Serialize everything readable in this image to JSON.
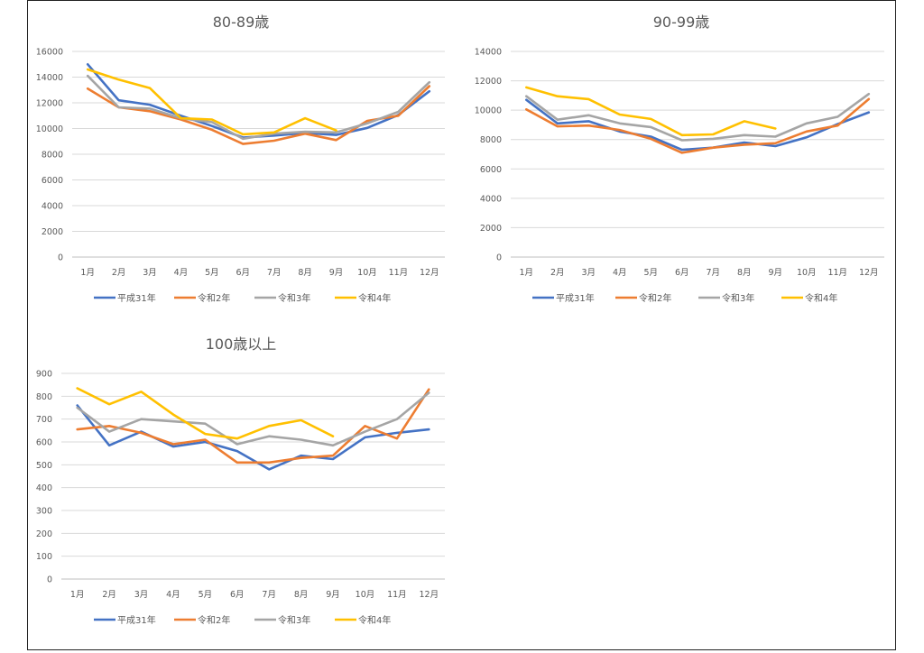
{
  "chart_data": [
    {
      "type": "line",
      "title": "80-89歳",
      "categories": [
        "1月",
        "2月",
        "3月",
        "4月",
        "5月",
        "6月",
        "7月",
        "8月",
        "9月",
        "10月",
        "11月",
        "12月"
      ],
      "ylim": [
        0,
        16000
      ],
      "yticks": [
        0,
        2000,
        4000,
        6000,
        8000,
        10000,
        12000,
        14000,
        16000
      ],
      "grid": true,
      "legend_position": "bottom",
      "series": [
        {
          "name": "平成31年",
          "color": "#4472C4",
          "values": [
            15000,
            12200,
            11850,
            11000,
            10200,
            9300,
            9450,
            9650,
            9500,
            10050,
            11050,
            12900
          ]
        },
        {
          "name": "令和2年",
          "color": "#ED7D31",
          "values": [
            13100,
            11650,
            11350,
            10700,
            9900,
            8800,
            9050,
            9600,
            9100,
            10600,
            11000,
            13300
          ]
        },
        {
          "name": "令和3年",
          "color": "#A5A5A5",
          "values": [
            14100,
            11650,
            11550,
            10800,
            10500,
            9200,
            9600,
            9750,
            9700,
            10400,
            11300,
            13600
          ]
        },
        {
          "name": "令和4年",
          "color": "#FFC000",
          "values": [
            14600,
            13800,
            13150,
            10800,
            10700,
            9550,
            9700,
            10800,
            9850,
            null,
            null,
            null
          ]
        }
      ]
    },
    {
      "type": "line",
      "title": "90-99歳",
      "categories": [
        "1月",
        "2月",
        "3月",
        "4月",
        "5月",
        "6月",
        "7月",
        "8月",
        "9月",
        "10月",
        "11月",
        "12月"
      ],
      "ylim": [
        0,
        14000
      ],
      "yticks": [
        0,
        2000,
        4000,
        6000,
        8000,
        10000,
        12000,
        14000
      ],
      "grid": true,
      "legend_position": "bottom",
      "series": [
        {
          "name": "平成31年",
          "color": "#4472C4",
          "values": [
            10700,
            9100,
            9250,
            8550,
            8200,
            7300,
            7450,
            7800,
            7550,
            8150,
            9050,
            9850
          ]
        },
        {
          "name": "令和2年",
          "color": "#ED7D31",
          "values": [
            10050,
            8900,
            8950,
            8650,
            8050,
            7100,
            7450,
            7650,
            7750,
            8550,
            8950,
            10750
          ]
        },
        {
          "name": "令和3年",
          "color": "#A5A5A5",
          "values": [
            10950,
            9350,
            9650,
            9100,
            8850,
            7950,
            8050,
            8300,
            8200,
            9100,
            9550,
            11100
          ]
        },
        {
          "name": "令和4年",
          "color": "#FFC000",
          "values": [
            11550,
            10950,
            10750,
            9700,
            9400,
            8300,
            8350,
            9250,
            8750,
            null,
            null,
            null
          ]
        }
      ]
    },
    {
      "type": "line",
      "title": "100歳以上",
      "categories": [
        "1月",
        "2月",
        "3月",
        "4月",
        "5月",
        "6月",
        "7月",
        "8月",
        "9月",
        "10月",
        "11月",
        "12月"
      ],
      "ylim": [
        0,
        900
      ],
      "yticks": [
        0,
        100,
        200,
        300,
        400,
        500,
        600,
        700,
        800,
        900
      ],
      "grid": true,
      "legend_position": "bottom",
      "series": [
        {
          "name": "平成31年",
          "color": "#4472C4",
          "values": [
            760,
            585,
            645,
            580,
            600,
            560,
            480,
            540,
            525,
            620,
            640,
            655
          ]
        },
        {
          "name": "令和2年",
          "color": "#ED7D31",
          "values": [
            655,
            670,
            640,
            590,
            610,
            510,
            510,
            530,
            540,
            670,
            615,
            830
          ]
        },
        {
          "name": "令和3年",
          "color": "#A5A5A5",
          "values": [
            750,
            645,
            700,
            690,
            680,
            590,
            625,
            610,
            585,
            645,
            700,
            815
          ]
        },
        {
          "name": "令和4年",
          "color": "#FFC000",
          "values": [
            835,
            765,
            820,
            720,
            635,
            615,
            670,
            695,
            625,
            null,
            null,
            null
          ]
        }
      ]
    }
  ]
}
